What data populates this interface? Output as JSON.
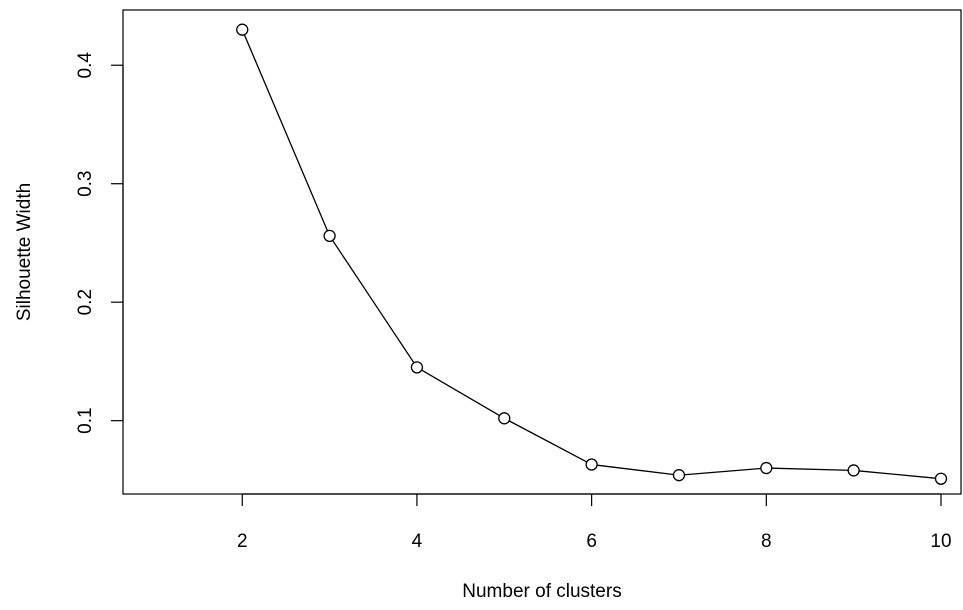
{
  "chart_data": {
    "type": "line",
    "x": [
      2,
      3,
      4,
      5,
      6,
      7,
      8,
      9,
      10
    ],
    "series": [
      {
        "values": [
          0.43,
          0.256,
          0.145,
          0.102,
          0.063,
          0.054,
          0.06,
          0.058,
          0.051
        ]
      }
    ],
    "xlabel": "Number of clusters",
    "ylabel": "Silhouette Width",
    "xlim": [
      1,
      10
    ],
    "ylim": [
      0.03,
      0.45
    ],
    "x_ticks": [
      2,
      4,
      6,
      8,
      10
    ],
    "x_tick_labels": [
      "2",
      "4",
      "6",
      "8",
      "10"
    ],
    "y_ticks": [
      0.1,
      0.2,
      0.3,
      0.4
    ],
    "y_tick_labels": [
      "0.1",
      "0.2",
      "0.3",
      "0.4"
    ],
    "grid": false,
    "marker": "open-circle",
    "line_color": "#000000"
  }
}
